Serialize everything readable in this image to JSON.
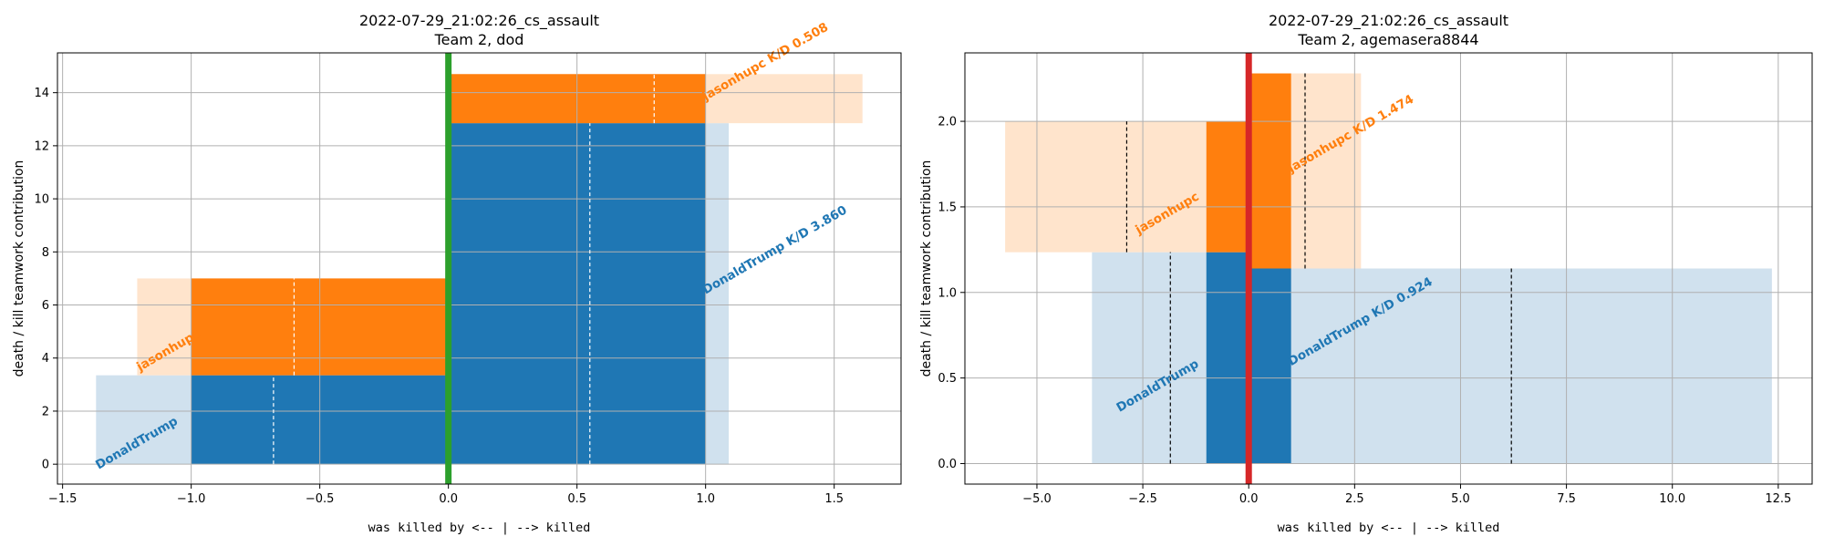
{
  "chart_data": [
    {
      "type": "bar",
      "title_line1": "2022-07-29_21:02:26_cs_assault",
      "title_line2": "Team 2, dod",
      "xlabel": "was killed by <-- | --> killed",
      "ylabel": "death / kill teamwork contribution",
      "xlim": [
        -1.52,
        1.76
      ],
      "ylim": [
        -0.75,
        15.5
      ],
      "xticks": [
        -1.5,
        -1.0,
        -0.5,
        0.0,
        0.5,
        1.0,
        1.5
      ],
      "xtick_labels": [
        "−1.5",
        "−1.0",
        "−0.5",
        "0.0",
        "0.5",
        "1.0",
        "1.5"
      ],
      "yticks": [
        0,
        2,
        4,
        6,
        8,
        10,
        12,
        14
      ],
      "ytick_labels": [
        "0",
        "2",
        "4",
        "6",
        "8",
        "10",
        "12",
        "14"
      ],
      "zero_line_color": "#2ca02c",
      "median_line_color": "#ffffff",
      "series": [
        {
          "name": "DonaldTrump",
          "color": "#1f77b4",
          "light_color": "#d0e1ee",
          "light_bars": [
            {
              "x0": -1.37,
              "x1": 0.0,
              "y0": 0.0,
              "y1": 3.35
            },
            {
              "x0": 0.0,
              "x1": 1.09,
              "y0": 0.0,
              "y1": 12.85
            }
          ],
          "dark_bars": [
            {
              "x0": -1.0,
              "x1": 0.0,
              "y0": 0.0,
              "y1": 3.35
            },
            {
              "x0": 0.0,
              "x1": 1.0,
              "y0": 0.0,
              "y1": 12.85
            }
          ],
          "median_lines": [
            {
              "x": -0.68,
              "y0": 0.0,
              "y1": 3.35
            },
            {
              "x": 0.55,
              "y0": 0.0,
              "y1": 12.85
            }
          ]
        },
        {
          "name": "jasonhupc",
          "color": "#ff7f0e",
          "light_color": "#ffe4cc",
          "light_bars": [
            {
              "x0": -1.21,
              "x1": 0.0,
              "y0": 3.35,
              "y1": 7.0
            },
            {
              "x0": 0.0,
              "x1": 1.61,
              "y0": 12.85,
              "y1": 14.7
            }
          ],
          "dark_bars": [
            {
              "x0": -1.0,
              "x1": 0.0,
              "y0": 3.35,
              "y1": 7.0
            },
            {
              "x0": 0.0,
              "x1": 1.0,
              "y0": 12.85,
              "y1": 14.7
            }
          ],
          "median_lines": [
            {
              "x": -0.6,
              "y0": 3.35,
              "y1": 7.0
            },
            {
              "x": 0.8,
              "y0": 12.85,
              "y1": 14.7
            }
          ]
        }
      ],
      "annotations": [
        {
          "text": "DonaldTrump",
          "x": -1.36,
          "y": -0.2,
          "color": "#1f77b4",
          "angle": -30
        },
        {
          "text": "jasonhupc",
          "x": -1.2,
          "y": 3.5,
          "color": "#ff7f0e",
          "angle": -30
        },
        {
          "text": "DonaldTrump K/D 3.860",
          "x": 1.0,
          "y": 6.4,
          "color": "#1f77b4",
          "angle": -30
        },
        {
          "text": "jasonhupc K/D 0.508",
          "x": 1.0,
          "y": 13.7,
          "color": "#ff7f0e",
          "angle": -30
        }
      ]
    },
    {
      "type": "bar",
      "title_line1": "2022-07-29_21:02:26_cs_assault",
      "title_line2": "Team 2, agemasera8844",
      "xlabel": "was killed by <-- | --> killed",
      "ylabel": "death / kill teamwork contribution",
      "xlim": [
        -6.7,
        13.3
      ],
      "ylim": [
        -0.12,
        2.4
      ],
      "xticks": [
        -5.0,
        -2.5,
        0.0,
        2.5,
        5.0,
        7.5,
        10.0,
        12.5
      ],
      "xtick_labels": [
        "−5.0",
        "−2.5",
        "0.0",
        "2.5",
        "5.0",
        "7.5",
        "10.0",
        "12.5"
      ],
      "yticks": [
        0.0,
        0.5,
        1.0,
        1.5,
        2.0
      ],
      "ytick_labels": [
        "0.0",
        "0.5",
        "1.0",
        "1.5",
        "2.0"
      ],
      "zero_line_color": "#d62728",
      "median_line_color": "#000000",
      "series": [
        {
          "name": "DonaldTrump",
          "color": "#1f77b4",
          "light_color": "#d0e1ee",
          "light_bars": [
            {
              "x0": -3.7,
              "x1": 0.0,
              "y0": 0.0,
              "y1": 1.235
            },
            {
              "x0": 0.0,
              "x1": 12.35,
              "y0": 0.0,
              "y1": 1.14
            }
          ],
          "dark_bars": [
            {
              "x0": -1.0,
              "x1": 0.0,
              "y0": 0.0,
              "y1": 1.235
            },
            {
              "x0": 0.0,
              "x1": 1.0,
              "y0": 0.0,
              "y1": 1.14
            }
          ],
          "median_lines": [
            {
              "x": -1.85,
              "y0": 0.0,
              "y1": 1.235
            },
            {
              "x": 6.2,
              "y0": 0.0,
              "y1": 1.14
            }
          ]
        },
        {
          "name": "jasonhupc",
          "color": "#ff7f0e",
          "light_color": "#ffe4cc",
          "light_bars": [
            {
              "x0": -5.75,
              "x1": 0.0,
              "y0": 1.235,
              "y1": 2.0
            },
            {
              "x0": 0.0,
              "x1": 2.65,
              "y0": 1.14,
              "y1": 2.28
            }
          ],
          "dark_bars": [
            {
              "x0": -1.0,
              "x1": 0.0,
              "y0": 1.235,
              "y1": 2.0
            },
            {
              "x0": 0.0,
              "x1": 1.0,
              "y0": 1.14,
              "y1": 2.28
            }
          ],
          "median_lines": [
            {
              "x": -2.88,
              "y0": 1.235,
              "y1": 2.0
            },
            {
              "x": 1.33,
              "y0": 1.14,
              "y1": 2.28
            }
          ]
        }
      ],
      "annotations": [
        {
          "text": "DonaldTrump",
          "x": -3.05,
          "y": 0.3,
          "color": "#1f77b4",
          "angle": -30
        },
        {
          "text": "jasonhupc",
          "x": -2.6,
          "y": 1.34,
          "color": "#ff7f0e",
          "angle": -30
        },
        {
          "text": "DonaldTrump K/D 0.924",
          "x": 1.0,
          "y": 0.57,
          "color": "#1f77b4",
          "angle": -30
        },
        {
          "text": "jasonhupc K/D 1.474",
          "x": 1.0,
          "y": 1.7,
          "color": "#ff7f0e",
          "angle": -30
        }
      ]
    }
  ]
}
